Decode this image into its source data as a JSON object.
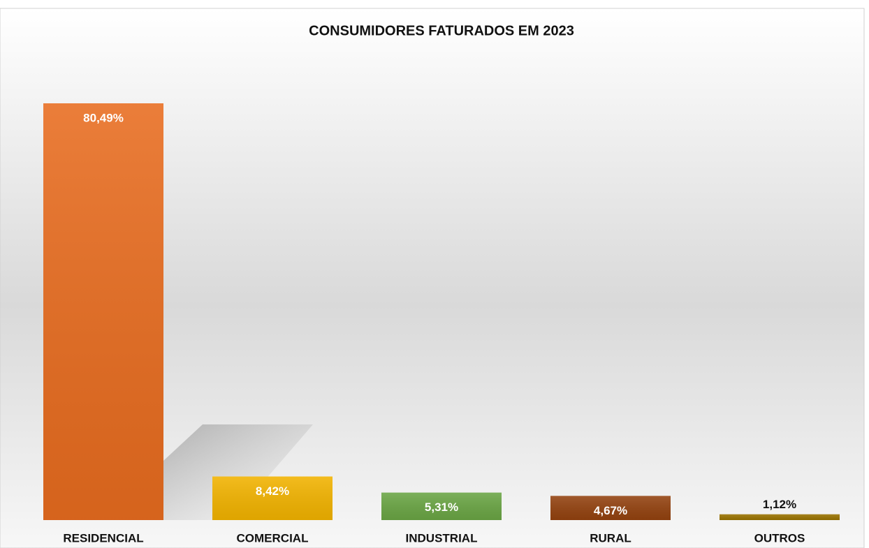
{
  "chart_data": {
    "type": "bar",
    "title": "CONSUMIDORES FATURADOS EM 2023",
    "categories": [
      "RESIDENCIAL",
      "COMERCIAL",
      "INDUSTRIAL",
      "RURAL",
      "OUTROS"
    ],
    "values": [
      80.49,
      8.42,
      5.31,
      4.67,
      1.12
    ],
    "value_labels": [
      "80,49%",
      "8,42%",
      "5,31%",
      "4,67%",
      "1,12%"
    ],
    "colors": [
      "#e86c1f",
      "#f2b300",
      "#6aa544",
      "#93420f",
      "#9a7300"
    ]
  }
}
